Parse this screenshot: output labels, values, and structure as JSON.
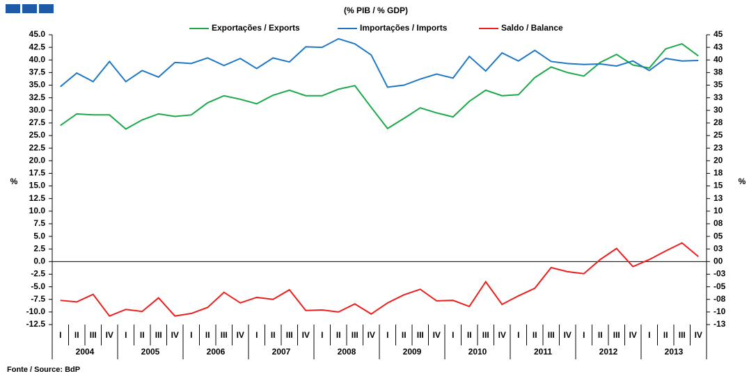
{
  "chart_data": {
    "type": "line",
    "title": "(% PIB / % GDP)",
    "ylabel": "%",
    "y2label": "%",
    "source": "Fonte / Source: BdP",
    "categories": [
      "I",
      "II",
      "III",
      "IV",
      "I",
      "II",
      "III",
      "IV",
      "I",
      "II",
      "III",
      "IV",
      "I",
      "II",
      "III",
      "IV",
      "I",
      "II",
      "III",
      "IV",
      "I",
      "II",
      "III",
      "IV",
      "I",
      "II",
      "III",
      "IV",
      "I",
      "II",
      "III",
      "IV",
      "I",
      "II",
      "III",
      "IV",
      "I",
      "II",
      "III",
      "IV"
    ],
    "years": [
      "2004",
      "2005",
      "2006",
      "2007",
      "2008",
      "2009",
      "2010",
      "2011",
      "2012",
      "2013"
    ],
    "series": [
      {
        "name": "Exportações / Exports",
        "color": "#1aa84a",
        "values": [
          27.0,
          29.3,
          29.1,
          29.1,
          26.3,
          28.1,
          29.3,
          28.8,
          29.1,
          31.5,
          32.9,
          32.2,
          31.3,
          33.0,
          34.0,
          32.9,
          32.9,
          34.2,
          34.9,
          30.6,
          26.4,
          28.4,
          30.5,
          29.5,
          28.7,
          31.8,
          34.0,
          32.9,
          33.1,
          36.5,
          38.6,
          37.5,
          36.8,
          39.5,
          41.1,
          39.0,
          38.4,
          42.2,
          43.2,
          40.8
        ]
      },
      {
        "name": "Importações / Imports",
        "color": "#1f77c4",
        "values": [
          34.7,
          37.4,
          35.7,
          39.7,
          35.7,
          37.9,
          36.6,
          39.5,
          39.3,
          40.4,
          38.9,
          40.3,
          38.3,
          40.4,
          39.6,
          42.6,
          42.5,
          44.2,
          43.2,
          41.0,
          34.6,
          35.0,
          36.2,
          37.2,
          36.4,
          40.7,
          37.8,
          41.4,
          39.8,
          41.9,
          39.7,
          39.3,
          39.1,
          39.2,
          38.8,
          39.8,
          37.9,
          40.3,
          39.8,
          39.9
        ]
      },
      {
        "name": "Saldo / Balance",
        "color": "#ee1c1c",
        "values": [
          -7.7,
          -8.0,
          -6.5,
          -10.8,
          -9.5,
          -9.9,
          -7.2,
          -10.8,
          -10.3,
          -9.1,
          -6.1,
          -8.2,
          -7.1,
          -7.5,
          -5.6,
          -9.7,
          -9.6,
          -10.0,
          -8.4,
          -10.4,
          -8.2,
          -6.6,
          -5.5,
          -7.8,
          -7.7,
          -8.9,
          -4.0,
          -8.5,
          -6.8,
          -5.3,
          -1.2,
          -2.0,
          -2.4,
          0.4,
          2.6,
          -1.0,
          0.4,
          2.1,
          3.7,
          1.0
        ]
      }
    ],
    "ylim": [
      -12.5,
      45
    ],
    "yticks": [
      {
        "value": 45,
        "label": "45.0"
      },
      42.5,
      {
        "value": 40,
        "label": "40.0"
      },
      37.5,
      {
        "value": 35,
        "label": "35.0"
      },
      32.5,
      {
        "value": 30,
        "label": "30.0"
      },
      27.5,
      {
        "value": 25,
        "label": "25.0"
      },
      22.5,
      {
        "value": 20,
        "label": "20.0"
      },
      17.5,
      {
        "value": 15,
        "label": "15.0"
      },
      12.5,
      {
        "value": 10,
        "label": "10.0"
      },
      7.5,
      {
        "value": 5,
        "label": "5.0"
      },
      2.5,
      {
        "value": 0,
        "label": "0.0"
      },
      -2.5,
      {
        "value": -5,
        "label": "-5.0"
      },
      -7.5,
      {
        "value": -10,
        "label": "-10.0"
      },
      -12.5
    ],
    "y2lim": [
      -12.5,
      45
    ],
    "y2ticks": [
      45,
      {
        "value": 42.5,
        "label": "43"
      },
      40,
      {
        "value": 37.5,
        "label": "38"
      },
      35,
      {
        "value": 32.5,
        "label": "33"
      },
      30,
      {
        "value": 27.5,
        "label": "28"
      },
      25,
      {
        "value": 22.5,
        "label": "23"
      },
      20,
      {
        "value": 17.5,
        "label": "18"
      },
      15,
      {
        "value": 12.5,
        "label": "13"
      },
      10,
      {
        "value": 7.5,
        "label": "08"
      },
      {
        "value": 5,
        "label": "05"
      },
      {
        "value": 2.5,
        "label": "03"
      },
      {
        "value": 0,
        "label": "00"
      },
      {
        "value": -2.5,
        "label": "-03"
      },
      {
        "value": -5,
        "label": "-05"
      },
      {
        "value": -7.5,
        "label": "-08"
      },
      -10,
      {
        "value": -12.5,
        "label": "-13"
      }
    ],
    "grid": false
  }
}
